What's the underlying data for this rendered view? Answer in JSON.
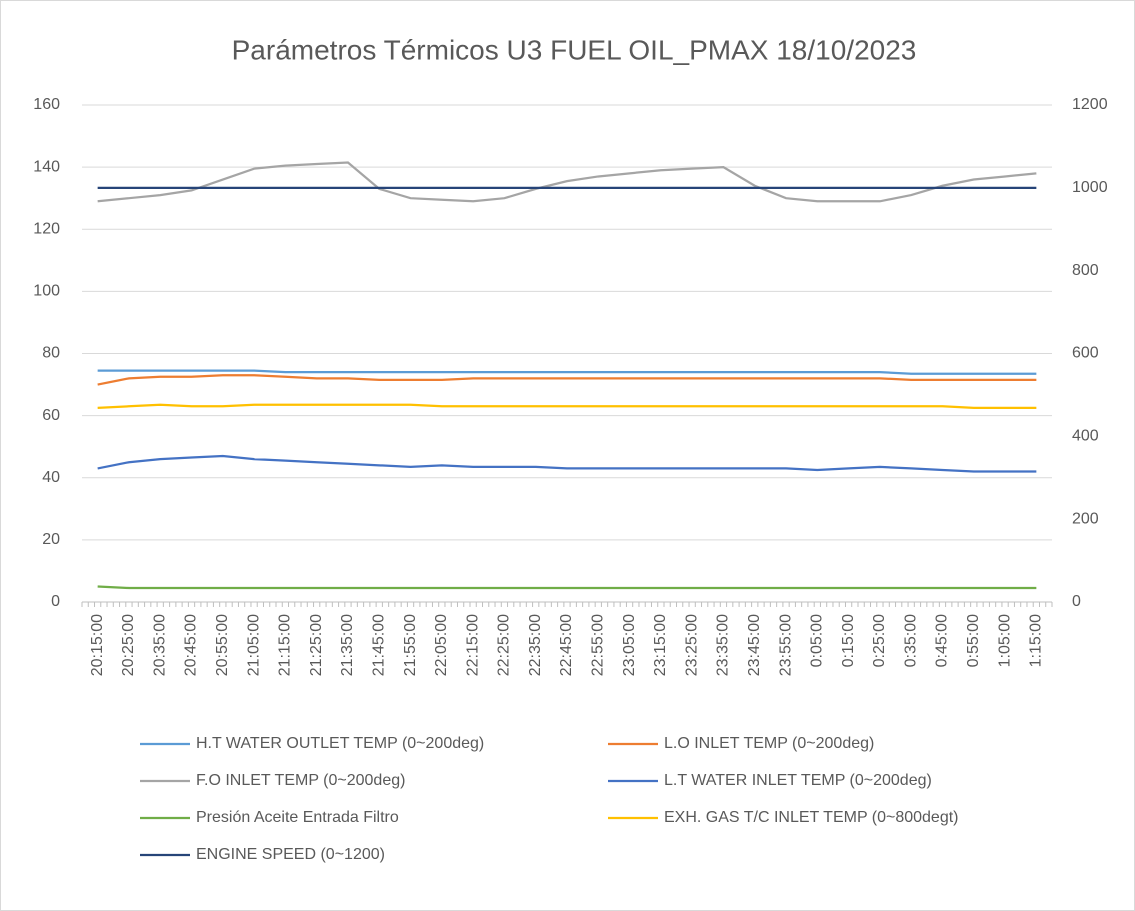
{
  "chart_data": {
    "type": "line",
    "title": "Parámetros Térmicos U3 FUEL OIL_PMAX 18/10/2023",
    "categories": [
      "20:15:00",
      "20:25:00",
      "20:35:00",
      "20:45:00",
      "20:55:00",
      "21:05:00",
      "21:15:00",
      "21:25:00",
      "21:35:00",
      "21:45:00",
      "21:55:00",
      "22:05:00",
      "22:15:00",
      "22:25:00",
      "22:35:00",
      "22:45:00",
      "22:55:00",
      "23:05:00",
      "23:15:00",
      "23:25:00",
      "23:35:00",
      "23:45:00",
      "23:55:00",
      "0:05:00",
      "0:15:00",
      "0:25:00",
      "0:35:00",
      "0:45:00",
      "0:55:00",
      "1:05:00",
      "1:15:00"
    ],
    "ylim": [
      0,
      160
    ],
    "yticks": [
      0,
      20,
      40,
      60,
      80,
      100,
      120,
      140,
      160
    ],
    "y2lim": [
      0,
      1200
    ],
    "y2ticks": [
      0,
      200,
      400,
      600,
      800,
      1000,
      1200
    ],
    "grid": true,
    "series": [
      {
        "name": "H.T WATER OUTLET TEMP (0~200deg)",
        "color": "#5b9bd5",
        "values": [
          74.5,
          74.5,
          74.5,
          74.5,
          74.5,
          74.5,
          74,
          74,
          74,
          74,
          74,
          74,
          74,
          74,
          74,
          74,
          74,
          74,
          74,
          74,
          74,
          74,
          74,
          74,
          74,
          74,
          73.5,
          73.5,
          73.5,
          73.5,
          73.5
        ]
      },
      {
        "name": "L.O INLET TEMP (0~200deg)",
        "color": "#ed7d31",
        "values": [
          70,
          72,
          72.5,
          72.5,
          73,
          73,
          72.5,
          72,
          72,
          71.5,
          71.5,
          71.5,
          72,
          72,
          72,
          72,
          72,
          72,
          72,
          72,
          72,
          72,
          72,
          72,
          72,
          72,
          71.5,
          71.5,
          71.5,
          71.5,
          71.5
        ]
      },
      {
        "name": "F.O INLET TEMP (0~200deg)",
        "color": "#a5a5a5",
        "values": [
          129,
          130,
          131,
          132.5,
          136,
          139.5,
          140.5,
          141,
          141.5,
          133,
          130,
          129.5,
          129,
          130,
          133,
          135.5,
          137,
          138,
          139,
          139.5,
          140,
          134,
          130,
          129,
          129,
          129,
          131,
          134,
          136,
          137,
          138
        ]
      },
      {
        "name": "L.T WATER INLET TEMP (0~200deg)",
        "color": "#4472c4",
        "values": [
          43,
          45,
          46,
          46.5,
          47,
          46,
          45.5,
          45,
          44.5,
          44,
          43.5,
          44,
          43.5,
          43.5,
          43.5,
          43,
          43,
          43,
          43,
          43,
          43,
          43,
          43,
          42.5,
          43,
          43.5,
          43,
          42.5,
          42,
          42,
          42
        ]
      },
      {
        "name": "Presión Aceite Entrada Filtro",
        "color": "#70ad47",
        "values": [
          5,
          4.5,
          4.5,
          4.5,
          4.5,
          4.5,
          4.5,
          4.5,
          4.5,
          4.5,
          4.5,
          4.5,
          4.5,
          4.5,
          4.5,
          4.5,
          4.5,
          4.5,
          4.5,
          4.5,
          4.5,
          4.5,
          4.5,
          4.5,
          4.5,
          4.5,
          4.5,
          4.5,
          4.5,
          4.5,
          4.5
        ]
      },
      {
        "name": "EXH. GAS T/C INLET TEMP (0~800degt)",
        "color": "#ffc000",
        "values": [
          62.5,
          63,
          63.5,
          63,
          63,
          63.5,
          63.5,
          63.5,
          63.5,
          63.5,
          63.5,
          63,
          63,
          63,
          63,
          63,
          63,
          63,
          63,
          63,
          63,
          63,
          63,
          63,
          63,
          63,
          63,
          63,
          62.5,
          62.5,
          62.5
        ]
      },
      {
        "name": "ENGINE SPEED (0~1200)",
        "color": "#264478",
        "axis": "y2",
        "values": [
          1000,
          1000,
          1000,
          1000,
          1000,
          1000,
          1000,
          1000,
          1000,
          1000,
          1000,
          1000,
          1000,
          1000,
          1000,
          1000,
          1000,
          1000,
          1000,
          1000,
          1000,
          1000,
          1000,
          1000,
          1000,
          1000,
          1000,
          1000,
          1000,
          1000,
          1000
        ]
      }
    ]
  }
}
